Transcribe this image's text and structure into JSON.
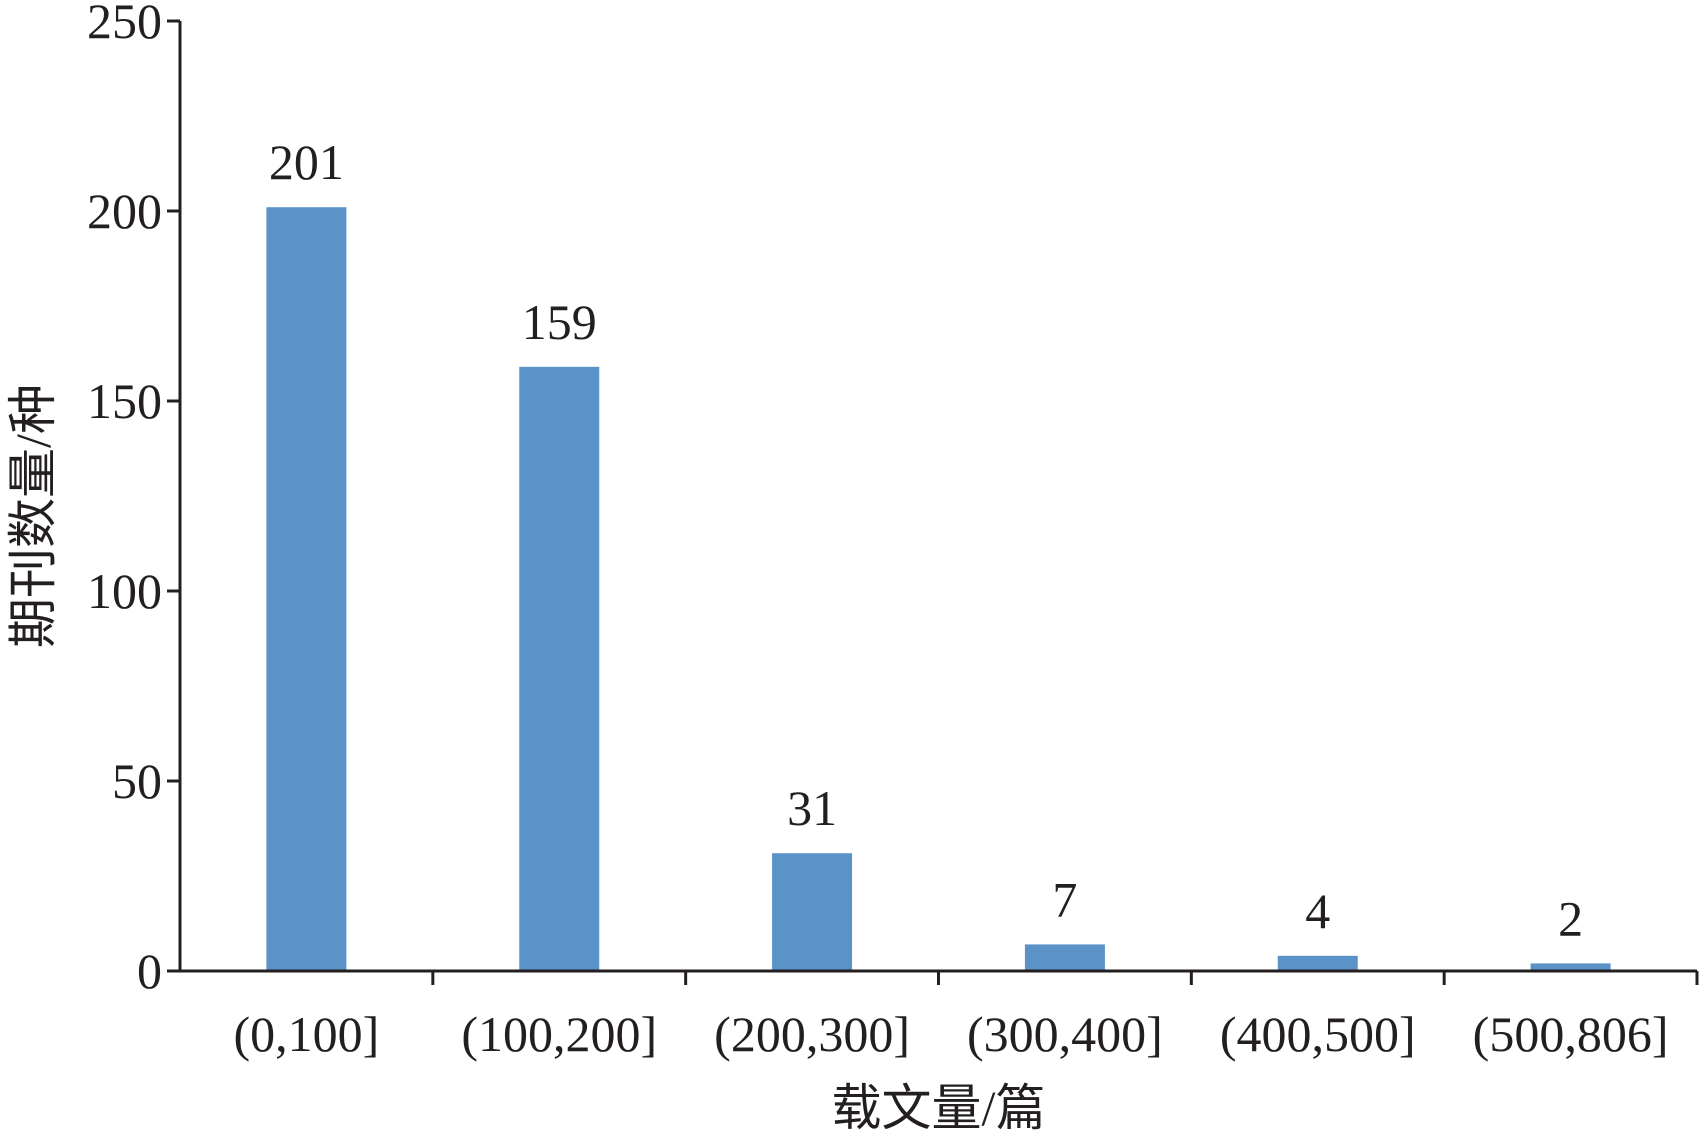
{
  "chart_data": {
    "type": "bar",
    "categories": [
      "(0,100]",
      "(100,200]",
      "(200,300]",
      "(300,400]",
      "(400,500]",
      "(500,806]"
    ],
    "values": [
      201,
      159,
      31,
      7,
      4,
      2
    ],
    "data_labels": [
      "201",
      "159",
      "31",
      "7",
      "4",
      "2"
    ],
    "title": "",
    "xlabel": "载文量/篇",
    "ylabel": "期刊数量/种",
    "ylim": [
      0,
      250
    ],
    "yticks": [
      0,
      50,
      100,
      150,
      200,
      250
    ],
    "ytick_labels": [
      "0",
      "50",
      "100",
      "150",
      "200",
      "250"
    ],
    "grid": false,
    "legend": "none",
    "bar_color": "#5b93c9",
    "axis_color": "#231f20"
  }
}
